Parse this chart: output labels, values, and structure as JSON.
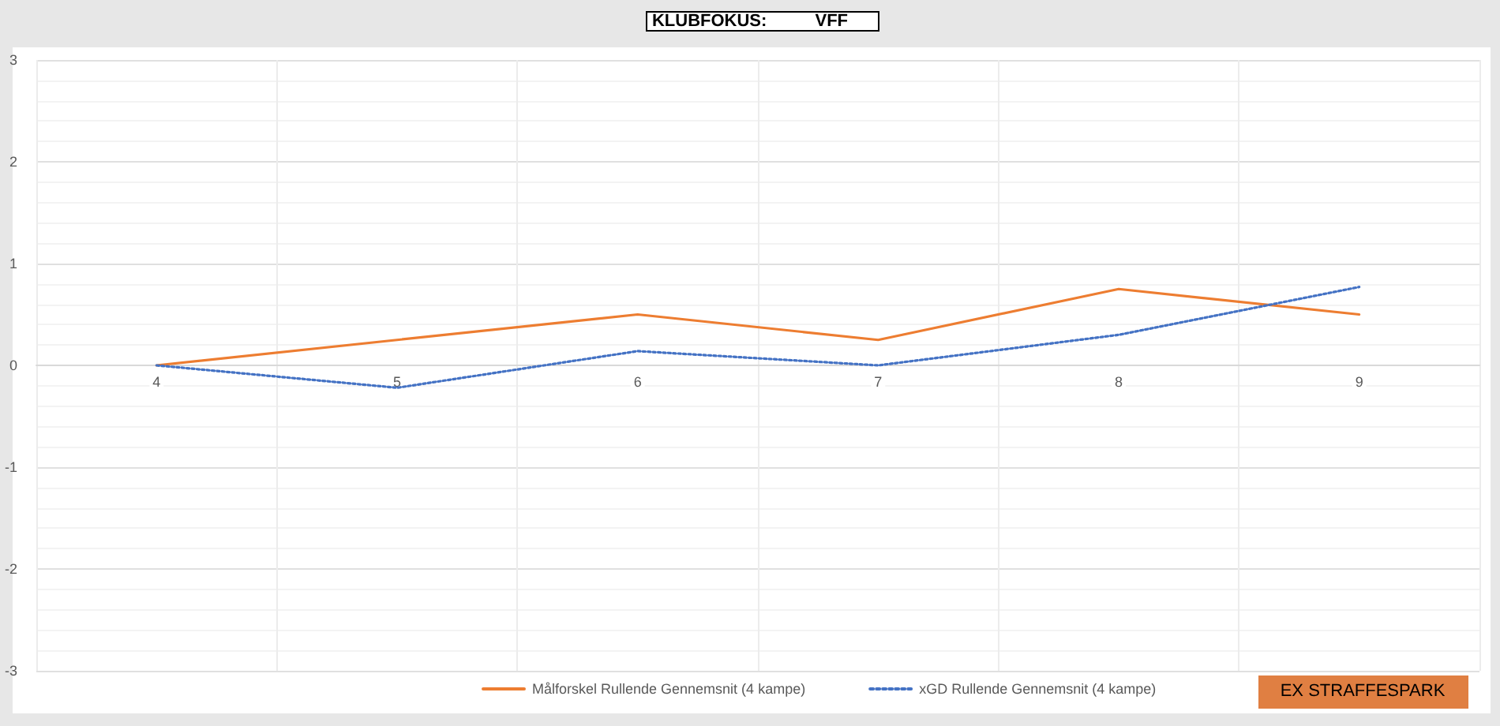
{
  "chart_data": {
    "type": "line",
    "title": "KLUBFOKUS:          VFF",
    "categories": [
      "4",
      "5",
      "6",
      "7",
      "8",
      "9"
    ],
    "series": [
      {
        "name": "Målforskel Rullende Gennemsnit (4 kampe)",
        "color": "#ed7d31",
        "values": [
          0,
          0.25,
          0.5,
          0.25,
          0.75,
          0.5
        ],
        "line_style": "solid"
      },
      {
        "name": "xGD Rullende Gennemsnit (4 kampe)",
        "color": "#4472c4",
        "values": [
          0,
          -0.22,
          0.14,
          0,
          0.3,
          0.77
        ],
        "line_style": "dotted"
      }
    ],
    "ylim": [
      -3,
      3
    ],
    "yticks": [
      -3,
      -2,
      -1,
      0,
      1,
      2,
      3
    ],
    "grid": true,
    "legend": "bottom",
    "marker": "none",
    "annotations": [
      "EX STRAFFESPARK"
    ]
  }
}
